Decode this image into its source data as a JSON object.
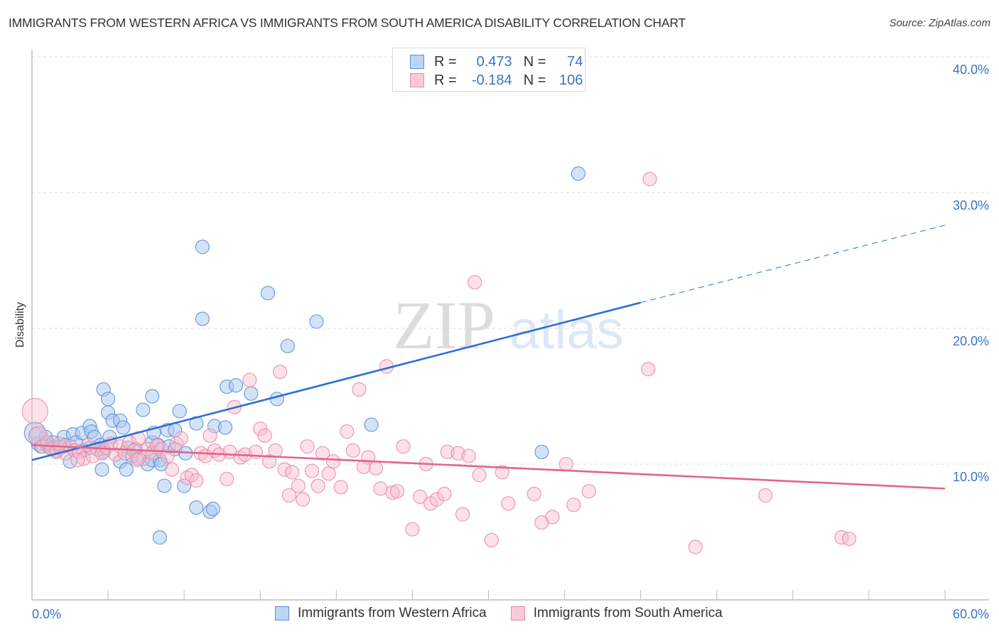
{
  "header": {
    "title": "IMMIGRANTS FROM WESTERN AFRICA VS IMMIGRANTS FROM SOUTH AMERICA DISABILITY CORRELATION CHART",
    "source": "Source: ZipAtlas.com"
  },
  "watermark": {
    "zip": "ZIP",
    "atlas": "atlas"
  },
  "legend_top": {
    "rows": [
      {
        "r_label": "R =",
        "r_value": "0.473",
        "n_label": "N =",
        "n_value": "74",
        "color": "#a8c8f0",
        "border": "#5b8fd8"
      },
      {
        "r_label": "R =",
        "r_value": "-0.184",
        "n_label": "N =",
        "n_value": "106",
        "color": "#f8bccd",
        "border": "#e98aa6"
      }
    ]
  },
  "legend_bottom": {
    "items": [
      {
        "label": "Immigrants from Western Africa",
        "color": "#a8c8f0",
        "border": "#5b8fd8"
      },
      {
        "label": "Immigrants from South America",
        "color": "#f8bccd",
        "border": "#e98aa6"
      }
    ]
  },
  "chart_data": {
    "type": "scatter",
    "title": "IMMIGRANTS FROM WESTERN AFRICA VS IMMIGRANTS FROM SOUTH AMERICA DISABILITY CORRELATION CHART",
    "xlabel": "",
    "ylabel": "Disability",
    "xlim": [
      0,
      60
    ],
    "ylim": [
      0,
      40
    ],
    "x_tick_labels": [
      "0.0%",
      "60.0%"
    ],
    "y_ticks": [
      10,
      20,
      30,
      40
    ],
    "y_tick_labels": [
      "10.0%",
      "20.0%",
      "30.0%",
      "40.0%"
    ],
    "grid": true,
    "legend": "top-center and bottom",
    "series": [
      {
        "name": "Immigrants from Western Africa",
        "color": "#5b8fd8",
        "fill": "#a8c8f0",
        "R": 0.473,
        "N": 74,
        "trend": {
          "x0": 0,
          "y0": 10.3,
          "x1": 40,
          "y1": 21.9,
          "dashed_to_x": 60,
          "dashed_to_y": 27.6
        },
        "points": [
          [
            0.3,
            12.2
          ],
          [
            0.4,
            11.5
          ],
          [
            0.6,
            11.3
          ],
          [
            0.9,
            12.0
          ],
          [
            1.0,
            11.4
          ],
          [
            1.2,
            11.2
          ],
          [
            1.4,
            11.6
          ],
          [
            1.6,
            11.0
          ],
          [
            1.8,
            11.3
          ],
          [
            2.1,
            12.0
          ],
          [
            2.2,
            11.4
          ],
          [
            2.5,
            10.2
          ],
          [
            2.7,
            12.2
          ],
          [
            2.9,
            11.6
          ],
          [
            3.3,
            12.3
          ],
          [
            3.4,
            11.0
          ],
          [
            3.8,
            11.2
          ],
          [
            3.8,
            12.8
          ],
          [
            3.9,
            12.4
          ],
          [
            4.1,
            12.0
          ],
          [
            4.5,
            11.4
          ],
          [
            4.6,
            9.6
          ],
          [
            4.7,
            11.1
          ],
          [
            4.7,
            10.9
          ],
          [
            5.0,
            13.8
          ],
          [
            4.7,
            15.5
          ],
          [
            5.0,
            14.8
          ],
          [
            5.1,
            12.0
          ],
          [
            5.3,
            13.2
          ],
          [
            5.8,
            13.2
          ],
          [
            5.8,
            10.2
          ],
          [
            6.0,
            12.7
          ],
          [
            6.2,
            9.6
          ],
          [
            6.3,
            11.2
          ],
          [
            6.6,
            10.6
          ],
          [
            6.8,
            11.1
          ],
          [
            7.0,
            10.4
          ],
          [
            7.3,
            14.0
          ],
          [
            7.6,
            10.0
          ],
          [
            7.9,
            15.0
          ],
          [
            7.9,
            11.6
          ],
          [
            7.9,
            10.3
          ],
          [
            8.0,
            12.3
          ],
          [
            8.3,
            11.4
          ],
          [
            8.4,
            10.3
          ],
          [
            8.5,
            10.0
          ],
          [
            8.9,
            12.5
          ],
          [
            8.7,
            8.4
          ],
          [
            9.0,
            11.3
          ],
          [
            9.4,
            11.1
          ],
          [
            9.4,
            12.5
          ],
          [
            9.7,
            13.9
          ],
          [
            10.0,
            8.4
          ],
          [
            10.1,
            10.8
          ],
          [
            10.8,
            13.0
          ],
          [
            10.8,
            6.8
          ],
          [
            11.2,
            26.0
          ],
          [
            11.2,
            20.7
          ],
          [
            11.7,
            6.5
          ],
          [
            11.9,
            6.7
          ],
          [
            12.0,
            12.8
          ],
          [
            12.7,
            12.7
          ],
          [
            12.8,
            15.7
          ],
          [
            13.4,
            15.8
          ],
          [
            14.4,
            15.2
          ],
          [
            15.5,
            22.6
          ],
          [
            16.1,
            14.8
          ],
          [
            16.8,
            18.7
          ],
          [
            18.7,
            20.5
          ],
          [
            22.3,
            12.9
          ],
          [
            33.5,
            10.9
          ],
          [
            35.9,
            31.4
          ],
          [
            8.4,
            4.6
          ],
          [
            0.2,
            12.3
          ]
        ]
      },
      {
        "name": "Immigrants from South America",
        "color": "#e98aa6",
        "fill": "#f8bccd",
        "R": -0.184,
        "N": 106,
        "trend": {
          "x0": 0,
          "y0": 11.4,
          "x1": 60,
          "y1": 8.2
        },
        "points": [
          [
            0.2,
            13.9
          ],
          [
            0.4,
            12.1
          ],
          [
            0.7,
            11.3
          ],
          [
            1.0,
            11.6
          ],
          [
            1.3,
            11.1
          ],
          [
            1.6,
            10.9
          ],
          [
            1.9,
            11.2
          ],
          [
            2.2,
            10.8
          ],
          [
            2.5,
            11.3
          ],
          [
            2.8,
            11.0
          ],
          [
            3.1,
            10.9
          ],
          [
            3.4,
            10.4
          ],
          [
            3.7,
            11.4
          ],
          [
            4.0,
            10.6
          ],
          [
            4.3,
            11.1
          ],
          [
            4.6,
            10.8
          ],
          [
            4.9,
            11.2
          ],
          [
            5.2,
            11.5
          ],
          [
            5.5,
            10.7
          ],
          [
            5.8,
            11.3
          ],
          [
            6.1,
            10.8
          ],
          [
            6.4,
            11.6
          ],
          [
            6.7,
            11.0
          ],
          [
            7.0,
            11.9
          ],
          [
            7.3,
            10.4
          ],
          [
            7.6,
            11.1
          ],
          [
            7.9,
            10.8
          ],
          [
            8.2,
            11.4
          ],
          [
            8.5,
            11.1
          ],
          [
            8.9,
            10.6
          ],
          [
            9.2,
            9.6
          ],
          [
            9.5,
            11.5
          ],
          [
            9.8,
            11.9
          ],
          [
            10.2,
            9.0
          ],
          [
            10.5,
            9.2
          ],
          [
            10.8,
            8.8
          ],
          [
            11.1,
            10.8
          ],
          [
            11.4,
            10.6
          ],
          [
            11.7,
            12.1
          ],
          [
            12.0,
            11.0
          ],
          [
            12.3,
            10.7
          ],
          [
            12.8,
            8.9
          ],
          [
            13.0,
            10.9
          ],
          [
            13.3,
            14.2
          ],
          [
            13.7,
            10.5
          ],
          [
            14.0,
            10.7
          ],
          [
            14.3,
            16.2
          ],
          [
            14.7,
            10.9
          ],
          [
            15.0,
            12.6
          ],
          [
            15.3,
            12.1
          ],
          [
            15.6,
            10.2
          ],
          [
            16.0,
            11.0
          ],
          [
            16.3,
            16.8
          ],
          [
            16.6,
            9.6
          ],
          [
            16.9,
            7.7
          ],
          [
            17.1,
            9.4
          ],
          [
            17.5,
            8.4
          ],
          [
            17.8,
            7.4
          ],
          [
            18.1,
            11.3
          ],
          [
            18.4,
            9.5
          ],
          [
            18.8,
            8.4
          ],
          [
            19.1,
            10.8
          ],
          [
            19.5,
            9.3
          ],
          [
            19.8,
            10.2
          ],
          [
            20.3,
            8.3
          ],
          [
            20.7,
            12.4
          ],
          [
            21.1,
            11.0
          ],
          [
            21.5,
            15.5
          ],
          [
            21.8,
            9.8
          ],
          [
            22.1,
            10.5
          ],
          [
            22.6,
            9.7
          ],
          [
            22.9,
            8.2
          ],
          [
            23.3,
            17.2
          ],
          [
            23.7,
            7.9
          ],
          [
            24.0,
            8.0
          ],
          [
            24.4,
            11.3
          ],
          [
            25.0,
            5.2
          ],
          [
            25.5,
            7.6
          ],
          [
            25.9,
            10.0
          ],
          [
            26.2,
            7.1
          ],
          [
            26.6,
            7.4
          ],
          [
            27.1,
            7.8
          ],
          [
            27.3,
            10.9
          ],
          [
            28.0,
            10.8
          ],
          [
            28.3,
            6.3
          ],
          [
            28.7,
            10.6
          ],
          [
            29.1,
            23.4
          ],
          [
            29.4,
            9.2
          ],
          [
            30.2,
            4.4
          ],
          [
            30.9,
            9.4
          ],
          [
            31.3,
            7.1
          ],
          [
            33.0,
            7.8
          ],
          [
            33.5,
            5.7
          ],
          [
            34.2,
            6.1
          ],
          [
            35.1,
            10.0
          ],
          [
            35.6,
            7.0
          ],
          [
            36.6,
            8.0
          ],
          [
            40.5,
            17.0
          ],
          [
            40.6,
            31.0
          ],
          [
            43.6,
            3.9
          ],
          [
            48.2,
            7.7
          ],
          [
            53.2,
            4.6
          ],
          [
            53.7,
            4.5
          ],
          [
            1.8,
            11.5
          ],
          [
            3.0,
            10.3
          ],
          [
            6.9,
            10.3
          ]
        ]
      }
    ]
  }
}
